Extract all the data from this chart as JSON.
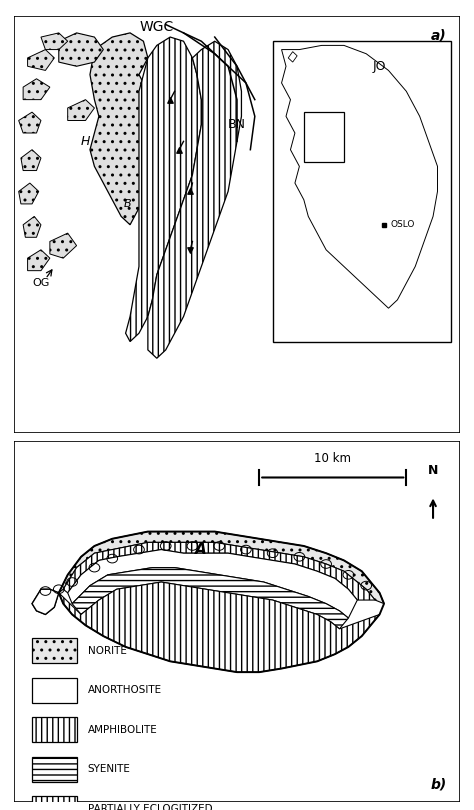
{
  "figure_width": 4.74,
  "figure_height": 8.1,
  "dpi": 100,
  "bg_color": "#ffffff",
  "panel_a_label": "a)",
  "panel_b_label": "b)",
  "legend_items": [
    {
      "label": "NORITE",
      "hatch": ".."
    },
    {
      "label": "ANORTHOSITE",
      "hatch": ""
    },
    {
      "label": "AMPHIBOLITE",
      "hatch": "|||"
    },
    {
      "label": "SYENITE",
      "hatch": "==="
    },
    {
      "label": "PARTIALLY ECLOGITIZED",
      "hatch": "|||"
    }
  ],
  "text_WGC": "WGC",
  "text_JO": "JO",
  "text_BN": "BN",
  "text_OG": "OG",
  "text_H": "H",
  "text_B": "B",
  "text_OSLO": "OSLO",
  "text_A": "A",
  "text_10km": "10 km",
  "text_N": "N"
}
